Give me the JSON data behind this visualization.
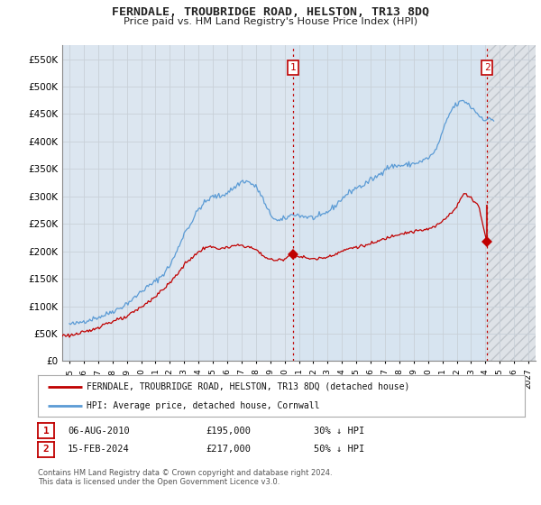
{
  "title": "FERNDALE, TROUBRIDGE ROAD, HELSTON, TR13 8DQ",
  "subtitle": "Price paid vs. HM Land Registry's House Price Index (HPI)",
  "ylim": [
    0,
    575000
  ],
  "yticks": [
    0,
    50000,
    100000,
    150000,
    200000,
    250000,
    300000,
    350000,
    400000,
    450000,
    500000,
    550000
  ],
  "xlim_start": 1994.5,
  "xlim_end": 2027.5,
  "xticks": [
    1995,
    1996,
    1997,
    1998,
    1999,
    2000,
    2001,
    2002,
    2003,
    2004,
    2005,
    2006,
    2007,
    2008,
    2009,
    2010,
    2011,
    2012,
    2013,
    2014,
    2015,
    2016,
    2017,
    2018,
    2019,
    2020,
    2021,
    2022,
    2023,
    2024,
    2025,
    2026,
    2027
  ],
  "hpi_color": "#5b9bd5",
  "price_color": "#c00000",
  "annotation_color": "#c00000",
  "grid_color": "#c8d0d8",
  "plot_bg_color": "#dce6f0",
  "marker1_x": 2010.58,
  "marker1_y": 195000,
  "marker2_x": 2024.12,
  "marker2_y": 217000,
  "shade_fill_color": "#ccd9e8",
  "hatch_color": "#b0b8c0",
  "annotation1": {
    "label": "1",
    "date": "06-AUG-2010",
    "price": "£195,000",
    "pct": "30% ↓ HPI"
  },
  "annotation2": {
    "label": "2",
    "date": "15-FEB-2024",
    "price": "£217,000",
    "pct": "50% ↓ HPI"
  },
  "legend_line1": "FERNDALE, TROUBRIDGE ROAD, HELSTON, TR13 8DQ (detached house)",
  "legend_line2": "HPI: Average price, detached house, Cornwall",
  "footnote": "Contains HM Land Registry data © Crown copyright and database right 2024.\nThis data is licensed under the Open Government Licence v3.0."
}
